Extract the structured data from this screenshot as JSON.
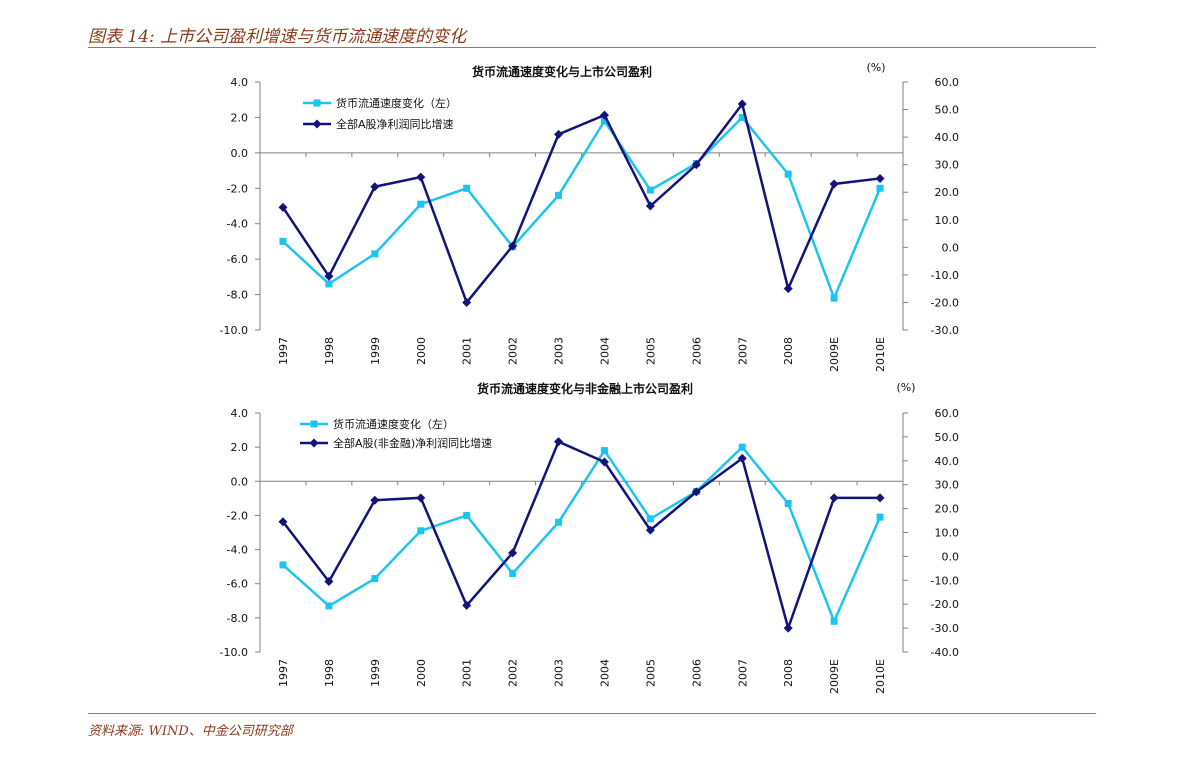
{
  "page": {
    "title": "图表 14: 上市公司盈利增速与货币流通速度的变化",
    "source": "资料来源: WIND、中金公司研究部"
  },
  "colors": {
    "velocity": "#1CC4F0",
    "profit": "#13137A",
    "axis": "#808080",
    "accent": "#8B3A1A"
  },
  "chart_data": [
    {
      "type": "line",
      "title": "货币流通速度变化与上市公司盈利",
      "unit_label": "(%)",
      "categories": [
        "1997",
        "1998",
        "1999",
        "2000",
        "2001",
        "2002",
        "2003",
        "2004",
        "2005",
        "2006",
        "2007",
        "2008",
        "2009E",
        "2010E"
      ],
      "left_axis": {
        "min": -10,
        "max": 4,
        "step": 2,
        "ticks": [
          "4.0",
          "2.0",
          "0.0",
          "-2.0",
          "-4.0",
          "-6.0",
          "-8.0",
          "-10.0"
        ]
      },
      "right_axis": {
        "min": -30,
        "max": 60,
        "step": 10,
        "ticks": [
          "60.0",
          "50.0",
          "40.0",
          "30.0",
          "20.0",
          "10.0",
          "0.0",
          "-10.0",
          "-20.0",
          "-30.0"
        ]
      },
      "series": [
        {
          "name": "货币流通速度变化（左）",
          "axis": "left",
          "marker": "square",
          "values": [
            -5.0,
            -7.4,
            -5.7,
            -2.9,
            -2.0,
            -5.3,
            -2.4,
            1.8,
            -2.1,
            -0.6,
            2.0,
            -1.2,
            -8.2,
            -2.0
          ]
        },
        {
          "name": "全部A股净利润同比增速",
          "axis": "right",
          "marker": "diamond",
          "values": [
            14.5,
            -10.5,
            22.0,
            25.5,
            -20.0,
            0.5,
            41.0,
            48.0,
            15.0,
            30.0,
            52.0,
            -15.0,
            23.0,
            25.0
          ]
        }
      ]
    },
    {
      "type": "line",
      "title": "货币流通速度变化与非金融上市公司盈利",
      "unit_label": "(%)",
      "categories": [
        "1997",
        "1998",
        "1999",
        "2000",
        "2001",
        "2002",
        "2003",
        "2004",
        "2005",
        "2006",
        "2007",
        "2008",
        "2009E",
        "2010E"
      ],
      "left_axis": {
        "min": -10,
        "max": 4,
        "step": 2,
        "ticks": [
          "4.0",
          "2.0",
          "0.0",
          "-2.0",
          "-4.0",
          "-6.0",
          "-8.0",
          "-10.0"
        ]
      },
      "right_axis": {
        "min": -40,
        "max": 60,
        "step": 10,
        "ticks": [
          "60.0",
          "50.0",
          "40.0",
          "30.0",
          "20.0",
          "10.0",
          "0.0",
          "-10.0",
          "-20.0",
          "-30.0",
          "-40.0"
        ]
      },
      "series": [
        {
          "name": "货币流通速度变化（左）",
          "axis": "left",
          "marker": "square",
          "values": [
            -4.9,
            -7.3,
            -5.7,
            -2.9,
            -2.0,
            -5.4,
            -2.4,
            1.8,
            -2.2,
            -0.6,
            2.0,
            -1.3,
            -8.2,
            -2.1
          ]
        },
        {
          "name": "全部A股(非金融)净利润同比增速",
          "axis": "right",
          "marker": "diamond",
          "values": [
            14.5,
            -10.5,
            23.5,
            24.5,
            -20.5,
            1.5,
            48.0,
            39.5,
            11.0,
            27.0,
            41.0,
            -30.0,
            24.5,
            24.5
          ]
        }
      ]
    }
  ]
}
